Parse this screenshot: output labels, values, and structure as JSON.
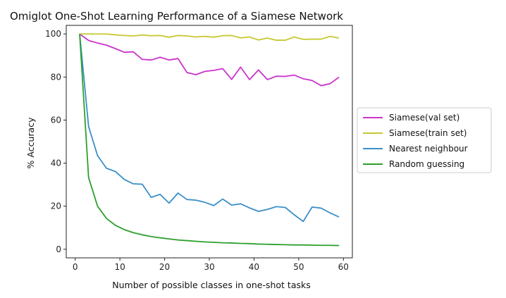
{
  "chart_data": {
    "type": "line",
    "title": "Omiglot One-Shot Learning Performance of a Siamese Network",
    "xlabel": "Number of possible classes in one-shot tasks",
    "ylabel": "% Accuracy",
    "xlim": [
      -2,
      62
    ],
    "ylim": [
      -4,
      104
    ],
    "xticks": [
      0,
      10,
      20,
      30,
      40,
      50,
      60
    ],
    "yticks": [
      0,
      20,
      40,
      60,
      80,
      100
    ],
    "grid": false,
    "legend_position": "right, outside plot",
    "x": [
      1,
      3,
      5,
      7,
      9,
      11,
      13,
      15,
      17,
      19,
      21,
      23,
      25,
      27,
      29,
      31,
      33,
      35,
      37,
      39,
      41,
      43,
      45,
      47,
      49,
      51,
      53,
      55,
      57,
      59
    ],
    "series": [
      {
        "name": "Siamese(val set)",
        "color": "#cc33cc",
        "values": [
          100,
          97,
          95.8,
          94.8,
          93.2,
          91.5,
          91.7,
          88.2,
          87.9,
          89.2,
          87.9,
          88.6,
          82.1,
          81.1,
          82.6,
          83.1,
          83.9,
          78.9,
          84.6,
          78.8,
          83.3,
          78.8,
          80.4,
          80.3,
          80.9,
          79.2,
          78.4,
          76.0,
          76.9,
          79.9
        ]
      },
      {
        "name": "Siamese(train set)",
        "color": "#c8c832",
        "values": [
          100,
          100,
          100,
          100,
          99.6,
          99.3,
          99.1,
          99.5,
          99.2,
          99.3,
          98.5,
          99.3,
          99.1,
          98.6,
          98.9,
          98.5,
          99.2,
          99.3,
          98.2,
          98.6,
          97.2,
          98.1,
          97.1,
          97.1,
          98.6,
          97.5,
          97.6,
          97.6,
          98.9,
          98.1
        ]
      },
      {
        "name": "Nearest neighbour",
        "color": "#3a8fc8",
        "values": [
          100,
          57,
          43.5,
          37.6,
          36.1,
          32.4,
          30.4,
          30.2,
          24.1,
          25.5,
          21.4,
          26.1,
          23.1,
          22.8,
          21.8,
          20.3,
          23.3,
          20.5,
          21.1,
          19.2,
          17.6,
          18.5,
          19.8,
          19.4,
          16.0,
          12.9,
          19.6,
          19.1,
          16.9,
          15.0
        ]
      },
      {
        "name": "Random guessing",
        "color": "#2ca02c",
        "values": [
          100,
          33.3,
          20.0,
          14.3,
          11.1,
          9.1,
          7.7,
          6.7,
          5.9,
          5.3,
          4.8,
          4.3,
          4.0,
          3.7,
          3.4,
          3.2,
          3.0,
          2.9,
          2.7,
          2.6,
          2.4,
          2.3,
          2.2,
          2.1,
          2.0,
          2.0,
          1.9,
          1.8,
          1.8,
          1.7
        ]
      }
    ]
  }
}
